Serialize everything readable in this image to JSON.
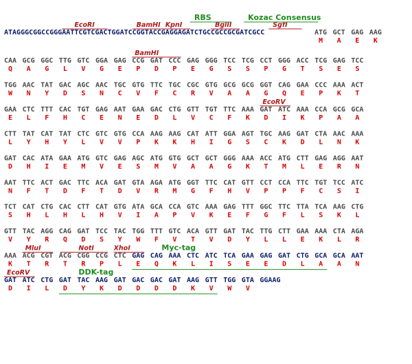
{
  "colors": {
    "utr_nt": "#0a1a66",
    "cds_nt": "#4a4a4a",
    "tag_nt": "#0a1a66",
    "amino_acid": "#d90000",
    "enzyme_label": "#b01818",
    "feature_label": "#1e8c1e"
  },
  "header": {
    "sequence": "ATAGGGCGGCCGGGAATTCGTCGACTGGATCCGGTACCGAGGAGATCTGCCGCCGCGATCGCC",
    "start_codons": [
      "ATG",
      "GCT",
      "GAG",
      "AAG"
    ],
    "start_aa": [
      "M",
      "A",
      "E",
      "K"
    ],
    "enzymes": [
      "EcoRI",
      "BamHI",
      "KpnI",
      "BglII",
      "SgfI"
    ],
    "features": [
      "RBS",
      "Kozac Consensus"
    ]
  },
  "rows": [
    {
      "codons": [
        "CAA",
        "GCG",
        "GGC",
        "TTG",
        "GTC",
        "GGA",
        "GAG",
        "CCG",
        "GAT",
        "CCC",
        "GAG",
        "GGG",
        "TCC",
        "TCG",
        "CCT",
        "GGG",
        "ACC",
        "TCG",
        "GAG",
        "TCC"
      ],
      "aa": [
        "Q",
        "A",
        "G",
        "L",
        "V",
        "G",
        "E",
        "P",
        "D",
        "P",
        "E",
        "G",
        "S",
        "S",
        "P",
        "G",
        "T",
        "S",
        "E",
        "S"
      ],
      "enzymes": [
        "BamHI"
      ],
      "features": []
    },
    {
      "codons": [
        "TGG",
        "AAC",
        "TAT",
        "GAC",
        "AGC",
        "AAC",
        "TGC",
        "GTG",
        "TTC",
        "TGC",
        "CGC",
        "GTG",
        "GCG",
        "GCG",
        "GGT",
        "CAG",
        "GAA",
        "CCC",
        "AAA",
        "ACT"
      ],
      "aa": [
        "W",
        "N",
        "Y",
        "D",
        "S",
        "N",
        "C",
        "V",
        "F",
        "C",
        "R",
        "V",
        "A",
        "A",
        "G",
        "Q",
        "E",
        "P",
        "K",
        "T"
      ],
      "enzymes": [],
      "features": []
    },
    {
      "codons": [
        "GAA",
        "CTC",
        "TTT",
        "CAC",
        "TGT",
        "GAG",
        "AAT",
        "GAA",
        "GAC",
        "CTG",
        "GTT",
        "TGT",
        "TTC",
        "AAA",
        "GAT",
        "ATC",
        "AAA",
        "CCA",
        "GCG",
        "GCA"
      ],
      "aa": [
        "E",
        "L",
        "F",
        "H",
        "C",
        "E",
        "N",
        "E",
        "D",
        "L",
        "V",
        "C",
        "F",
        "K",
        "D",
        "I",
        "K",
        "P",
        "A",
        "A"
      ],
      "enzymes": [
        "EcoRV"
      ],
      "features": []
    },
    {
      "codons": [
        "CTT",
        "TAT",
        "CAT",
        "TAT",
        "CTC",
        "GTC",
        "GTG",
        "CCA",
        "AAG",
        "AAG",
        "CAT",
        "ATT",
        "GGA",
        "AGT",
        "TGC",
        "AAG",
        "GAT",
        "CTA",
        "AAC",
        "AAA"
      ],
      "aa": [
        "L",
        "Y",
        "H",
        "Y",
        "L",
        "V",
        "V",
        "P",
        "K",
        "K",
        "H",
        "I",
        "G",
        "S",
        "C",
        "K",
        "D",
        "L",
        "N",
        "K"
      ],
      "enzymes": [],
      "features": []
    },
    {
      "codons": [
        "GAT",
        "CAC",
        "ATA",
        "GAA",
        "ATG",
        "GTC",
        "GAG",
        "AGC",
        "ATG",
        "GTG",
        "GCT",
        "GCT",
        "GGG",
        "AAA",
        "ACC",
        "ATG",
        "CTT",
        "GAG",
        "AGG",
        "AAT"
      ],
      "aa": [
        "D",
        "H",
        "I",
        "E",
        "M",
        "V",
        "E",
        "S",
        "M",
        "V",
        "A",
        "A",
        "G",
        "K",
        "T",
        "M",
        "L",
        "E",
        "R",
        "N"
      ],
      "enzymes": [],
      "features": []
    },
    {
      "codons": [
        "AAT",
        "TTC",
        "ACT",
        "GAC",
        "TTC",
        "ACA",
        "GAT",
        "GTA",
        "AGA",
        "ATG",
        "GGT",
        "TTC",
        "CAT",
        "GTT",
        "CCT",
        "CCA",
        "TTC",
        "TGT",
        "TCC",
        "ATC"
      ],
      "aa": [
        "N",
        "F",
        "T",
        "D",
        "F",
        "T",
        "D",
        "V",
        "R",
        "M",
        "G",
        "F",
        "H",
        "V",
        "P",
        "P",
        "F",
        "C",
        "S",
        "I"
      ],
      "enzymes": [],
      "features": []
    },
    {
      "codons": [
        "TCT",
        "CAT",
        "CTG",
        "CAC",
        "CTT",
        "CAT",
        "GTG",
        "ATA",
        "GCA",
        "CCA",
        "GTC",
        "AAA",
        "GAG",
        "TTT",
        "GGC",
        "TTC",
        "TTA",
        "TCA",
        "AAG",
        "CTG"
      ],
      "aa": [
        "S",
        "H",
        "L",
        "H",
        "L",
        "H",
        "V",
        "I",
        "A",
        "P",
        "V",
        "K",
        "E",
        "F",
        "G",
        "F",
        "L",
        "S",
        "K",
        "L"
      ],
      "enzymes": [],
      "features": []
    },
    {
      "codons": [
        "GTT",
        "TAC",
        "AGG",
        "CAG",
        "GAT",
        "TCC",
        "TAC",
        "TGG",
        "TTT",
        "GTC",
        "ACA",
        "GTT",
        "GAT",
        "TAC",
        "TTG",
        "CTT",
        "GAA",
        "AAA",
        "CTA",
        "AGA"
      ],
      "aa": [
        "V",
        "Y",
        "R",
        "Q",
        "D",
        "S",
        "Y",
        "W",
        "F",
        "V",
        "T",
        "V",
        "D",
        "Y",
        "L",
        "L",
        "E",
        "K",
        "L",
        "R"
      ],
      "enzymes": [],
      "features": []
    },
    {
      "codons": [
        "AAA",
        "ACG",
        "CGT",
        "ACG",
        "CGG",
        "CCG",
        "CTC",
        "GAG",
        "CAG",
        "AAA",
        "CTC",
        "ATC",
        "TCA",
        "GAA",
        "GAG",
        "GAT",
        "CTG",
        "GCA",
        "GCA",
        "AAT"
      ],
      "aa": [
        "K",
        "T",
        "R",
        "T",
        "R",
        "P",
        "L",
        "E",
        "Q",
        "K",
        "L",
        "I",
        "S",
        "E",
        "E",
        "D",
        "L",
        "A",
        "A",
        "N"
      ],
      "enzymes": [
        "MluI",
        "NotI",
        "XhoI"
      ],
      "features": [
        "Myc-tag"
      ]
    },
    {
      "codons": [
        "GAT",
        "ATC",
        "CTG",
        "GAT",
        "TAC",
        "AAG",
        "GAT",
        "GAC",
        "GAC",
        "GAT",
        "AAG",
        "GTT",
        "TGG",
        "GTA",
        "GGAAG"
      ],
      "aa": [
        "D",
        "I",
        "L",
        "D",
        "Y",
        "K",
        "D",
        "D",
        "D",
        "D",
        "K",
        "V",
        "W",
        "V"
      ],
      "enzymes": [
        "EcoRV"
      ],
      "features": [
        "DDK-tag"
      ]
    }
  ]
}
